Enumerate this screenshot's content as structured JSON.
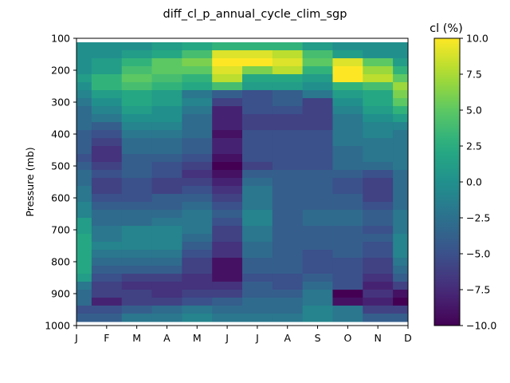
{
  "chart_data": {
    "type": "heatmap",
    "title": "diff_cl_p_annual_cycle_clim_sgp",
    "ylabel": "Pressure (mb)",
    "xlabel": "",
    "x_tick_labels": [
      "J",
      "F",
      "M",
      "A",
      "M",
      "J",
      "J",
      "A",
      "S",
      "O",
      "N",
      "D"
    ],
    "y_ticks": [
      100,
      200,
      300,
      400,
      500,
      600,
      700,
      800,
      900,
      1000
    ],
    "ylim": [
      1000,
      100
    ],
    "colorbar": {
      "label": "cl (%)",
      "range": [
        -10,
        10
      ],
      "ticks": [
        10,
        7.5,
        5,
        2.5,
        0,
        -2.5,
        -5,
        -7.5,
        -10
      ],
      "tick_labels": [
        "10.0",
        "7.5",
        "5.0",
        "2.5",
        "0.0",
        "−2.5",
        "−5.0",
        "−7.5",
        "−10.0"
      ],
      "colormap": "viridis"
    },
    "levels": [
      125,
      150,
      175,
      200,
      225,
      250,
      275,
      300,
      325,
      350,
      375,
      400,
      425,
      450,
      475,
      500,
      525,
      550,
      575,
      600,
      625,
      650,
      675,
      700,
      725,
      750,
      775,
      800,
      825,
      850,
      875,
      900,
      925,
      950,
      975
    ],
    "values": [
      [
        0,
        0,
        0,
        1,
        2,
        3,
        3,
        3,
        1,
        0,
        0,
        0
      ],
      [
        0,
        0,
        1,
        2,
        4,
        9,
        9,
        8,
        4,
        1,
        0,
        0
      ],
      [
        0,
        1,
        3,
        5,
        6,
        10,
        10,
        9,
        5,
        9,
        5,
        1
      ],
      [
        0,
        1,
        4,
        5,
        5,
        9,
        6,
        8,
        3,
        10,
        7,
        3
      ],
      [
        1,
        3,
        5,
        4,
        3,
        8,
        2,
        2,
        1,
        10,
        8,
        5
      ],
      [
        0,
        3,
        4,
        3,
        2,
        4,
        1,
        1,
        0,
        3,
        4,
        7
      ],
      [
        -1,
        1,
        2,
        1,
        -2,
        -4,
        -5,
        -4,
        -2,
        1,
        2,
        6
      ],
      [
        -2,
        0,
        2,
        1,
        -1,
        -6,
        -5,
        -4,
        -6,
        0,
        2,
        5
      ],
      [
        -3,
        -1,
        1,
        0,
        -2,
        -8,
        -5,
        -5,
        -6,
        -1,
        1,
        3
      ],
      [
        -3,
        -2,
        0,
        0,
        -3,
        -8,
        -6,
        -6,
        -6,
        -2,
        0,
        1
      ],
      [
        -3,
        -4,
        -1,
        -1,
        -3,
        -8,
        -6,
        -6,
        -6,
        -2,
        -1,
        -1
      ],
      [
        -4,
        -5,
        -2,
        -2,
        -3,
        -9,
        -5,
        -5,
        -5,
        -2,
        -1,
        -2
      ],
      [
        -4,
        -6,
        -3,
        -3,
        -4,
        -8,
        -5,
        -5,
        -5,
        -2,
        -2,
        -2
      ],
      [
        -4,
        -7,
        -3,
        -3,
        -4,
        -8,
        -5,
        -5,
        -5,
        -3,
        -2,
        -2
      ],
      [
        -5,
        -7,
        -4,
        -4,
        -5,
        -9,
        -5,
        -5,
        -5,
        -3,
        -2,
        -2
      ],
      [
        -4,
        -6,
        -4,
        -5,
        -6,
        -10,
        -6,
        -5,
        -5,
        -3,
        -3,
        -2
      ],
      [
        -3,
        -5,
        -4,
        -5,
        -7,
        -9,
        -4,
        -4,
        -4,
        -4,
        -5,
        -3
      ],
      [
        -3,
        -6,
        -5,
        -6,
        -6,
        -8,
        -3,
        -4,
        -4,
        -5,
        -6,
        -3
      ],
      [
        -2,
        -6,
        -5,
        -6,
        -5,
        -7,
        -2,
        -4,
        -4,
        -5,
        -6,
        -3
      ],
      [
        -2,
        -5,
        -5,
        -4,
        -4,
        -6,
        -2,
        -4,
        -4,
        -4,
        -6,
        -3
      ],
      [
        -1,
        -4,
        -4,
        -4,
        -3,
        -5,
        -2,
        -4,
        -4,
        -4,
        -5,
        -3
      ],
      [
        -1,
        -3,
        -3,
        -3,
        -2,
        -4,
        -1,
        -4,
        -3,
        -3,
        -4,
        -2
      ],
      [
        1,
        -3,
        -3,
        -2,
        -2,
        -5,
        -1,
        -4,
        -3,
        -3,
        -4,
        -2
      ],
      [
        1,
        -2,
        -1,
        -1,
        -2,
        -6,
        -2,
        -4,
        -4,
        -4,
        -5,
        -2
      ],
      [
        2,
        -2,
        -1,
        -1,
        -3,
        -6,
        -2,
        -4,
        -4,
        -4,
        -4,
        -1
      ],
      [
        2,
        -1,
        -1,
        -1,
        -4,
        -7,
        -3,
        -4,
        -4,
        -4,
        -5,
        -1
      ],
      [
        2,
        -2,
        -2,
        -2,
        -5,
        -7,
        -3,
        -4,
        -5,
        -4,
        -5,
        -1
      ],
      [
        2,
        -3,
        -3,
        -3,
        -6,
        -9,
        -4,
        -4,
        -5,
        -5,
        -6,
        -2
      ],
      [
        2,
        -4,
        -4,
        -4,
        -6,
        -9,
        -4,
        -4,
        -5,
        -5,
        -6,
        -3
      ],
      [
        1,
        -5,
        -6,
        -6,
        -7,
        -9,
        -5,
        -5,
        -4,
        -5,
        -7,
        -4
      ],
      [
        -2,
        -6,
        -7,
        -7,
        -7,
        -7,
        -4,
        -5,
        -3,
        -5,
        -8,
        -6
      ],
      [
        -3,
        -6,
        -6,
        -7,
        -6,
        -6,
        -4,
        -4,
        -2,
        -10,
        -7,
        -9
      ],
      [
        -3,
        -8,
        -6,
        -6,
        -5,
        -4,
        -3,
        -3,
        -2,
        -9,
        -8,
        -10
      ],
      [
        -5,
        -5,
        -4,
        -3,
        -2,
        -3,
        -3,
        -3,
        -1,
        -2,
        -6,
        -6
      ],
      [
        -4,
        -4,
        -2,
        -2,
        -1,
        -2,
        -2,
        -2,
        -1,
        -2,
        -4,
        -4
      ]
    ]
  }
}
